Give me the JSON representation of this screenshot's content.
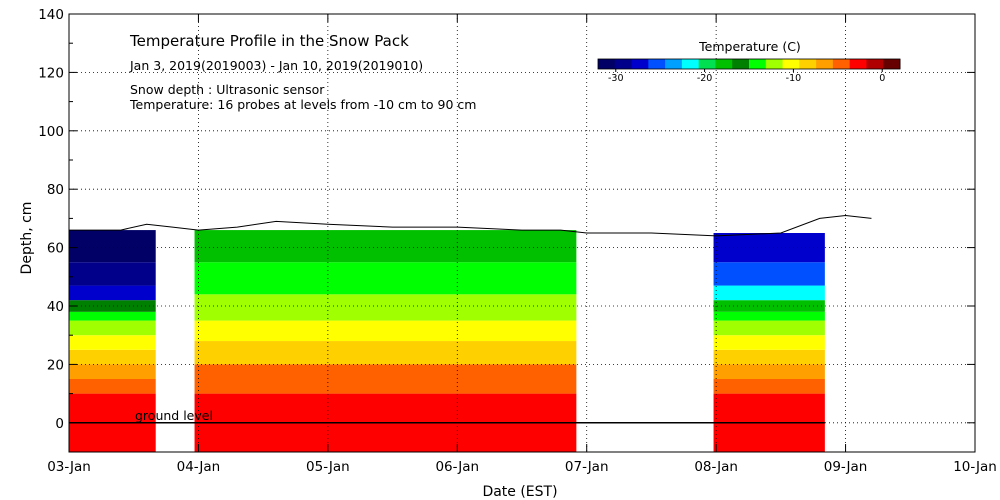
{
  "chart_data": {
    "type": "heatmap",
    "title": "Temperature Profile in the Snow Pack",
    "subtitle": "Jan  3, 2019(2019003) - Jan 10, 2019(2019010)",
    "notes": [
      "Snow depth : Ultrasonic sensor",
      "Temperature: 16 probes at levels from -10 cm to 90 cm"
    ],
    "xlabel": "Date (EST)",
    "ylabel": "Depth, cm",
    "x_ticks": [
      "03-Jan",
      "04-Jan",
      "05-Jan",
      "06-Jan",
      "07-Jan",
      "08-Jan",
      "09-Jan",
      "10-Jan"
    ],
    "xlim_days": [
      0,
      7
    ],
    "ylim": [
      -10,
      140
    ],
    "y_ticks": [
      0,
      20,
      40,
      60,
      80,
      100,
      120,
      140
    ],
    "grid": true,
    "ground_level_label": "ground level",
    "ground_level_value": 0,
    "colorbar": {
      "label": "Temperature (C)",
      "placement": "top-right",
      "range": [
        -32,
        2
      ],
      "ticks": [
        -30,
        -20,
        -10,
        0
      ],
      "tick_labels": [
        "-30",
        "-20",
        "-10",
        "0"
      ],
      "colors": [
        "#000066",
        "#00008b",
        "#0000cd",
        "#0050ff",
        "#00a0ff",
        "#00ffff",
        "#00e050",
        "#00c000",
        "#008000",
        "#00ff00",
        "#a0ff00",
        "#ffff00",
        "#ffd000",
        "#ffa000",
        "#ff6000",
        "#ff0000",
        "#b00000",
        "#660000"
      ]
    },
    "data_segments": [
      {
        "x0": 0.0,
        "x1": 0.67,
        "top": 66,
        "bands": [
          [
            -10,
            10,
            "#ff0000"
          ],
          [
            10,
            15,
            "#ff6000"
          ],
          [
            15,
            20,
            "#ffa000"
          ],
          [
            20,
            25,
            "#ffd000"
          ],
          [
            25,
            30,
            "#ffff00"
          ],
          [
            30,
            35,
            "#a0ff00"
          ],
          [
            35,
            38,
            "#00ff00"
          ],
          [
            38,
            42,
            "#008000"
          ],
          [
            42,
            47,
            "#0000cd"
          ],
          [
            47,
            55,
            "#00008b"
          ],
          [
            55,
            66,
            "#000066"
          ]
        ]
      },
      {
        "x0": 0.97,
        "x1": 3.92,
        "top": 66,
        "bands": [
          [
            -10,
            10,
            "#ff0000"
          ],
          [
            10,
            20,
            "#ff6000"
          ],
          [
            20,
            28,
            "#ffd000"
          ],
          [
            28,
            35,
            "#ffff00"
          ],
          [
            35,
            44,
            "#a0ff00"
          ],
          [
            44,
            55,
            "#00ff00"
          ],
          [
            55,
            66,
            "#00c000"
          ]
        ]
      },
      {
        "x0": 4.98,
        "x1": 5.84,
        "top": 65,
        "bands": [
          [
            -10,
            10,
            "#ff0000"
          ],
          [
            10,
            15,
            "#ff6000"
          ],
          [
            15,
            20,
            "#ffa000"
          ],
          [
            20,
            25,
            "#ffd000"
          ],
          [
            25,
            30,
            "#ffff00"
          ],
          [
            30,
            35,
            "#a0ff00"
          ],
          [
            35,
            38,
            "#00ff00"
          ],
          [
            38,
            42,
            "#00c000"
          ],
          [
            42,
            47,
            "#00ffff"
          ],
          [
            47,
            55,
            "#0050ff"
          ],
          [
            55,
            65,
            "#0000cd"
          ]
        ]
      }
    ],
    "snow_depth_line": {
      "x": [
        0.0,
        0.2,
        0.4,
        0.6,
        0.8,
        1.0,
        1.3,
        1.6,
        2.0,
        2.5,
        3.0,
        3.5,
        3.8,
        4.0,
        4.5,
        5.0,
        5.5,
        5.8,
        6.0,
        6.2
      ],
      "y": [
        66,
        66,
        66,
        68,
        67,
        66,
        67,
        69,
        68,
        67,
        67,
        66,
        66,
        65,
        65,
        64,
        65,
        70,
        71,
        70
      ]
    }
  }
}
